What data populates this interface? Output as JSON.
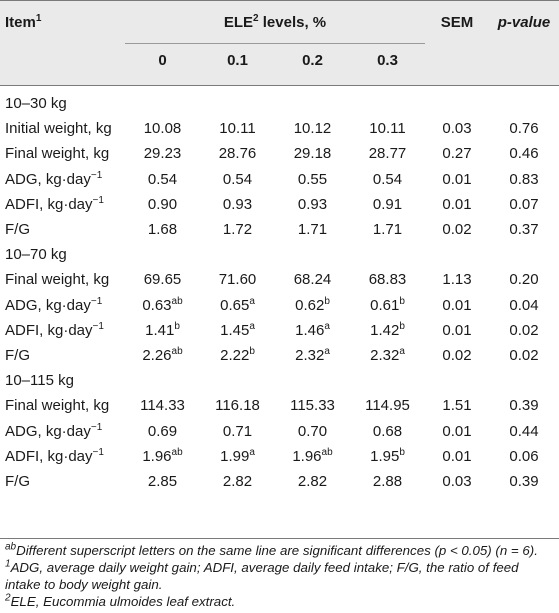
{
  "header": {
    "item": "Item",
    "item_sup": "1",
    "ele_pre": "ELE",
    "ele_sup": "2",
    "ele_post": " levels, %",
    "sem": "SEM",
    "pvalue": "p-value",
    "levels": [
      "0",
      "0.1",
      "0.2",
      "0.3"
    ]
  },
  "sections": [
    {
      "title": "10–30 kg",
      "rows": [
        {
          "label": "Initial weight, kg",
          "unit_sup": "",
          "values": [
            {
              "v": "10.08",
              "s": ""
            },
            {
              "v": "10.11",
              "s": ""
            },
            {
              "v": "10.12",
              "s": ""
            },
            {
              "v": "10.11",
              "s": ""
            }
          ],
          "sem": "0.03",
          "p": "0.76"
        },
        {
          "label": "Final weight, kg",
          "unit_sup": "",
          "values": [
            {
              "v": "29.23",
              "s": ""
            },
            {
              "v": "28.76",
              "s": ""
            },
            {
              "v": "29.18",
              "s": ""
            },
            {
              "v": "28.77",
              "s": ""
            }
          ],
          "sem": "0.27",
          "p": "0.46"
        },
        {
          "label": "ADG, kg·day",
          "unit_sup": "−1",
          "values": [
            {
              "v": "0.54",
              "s": ""
            },
            {
              "v": "0.54",
              "s": ""
            },
            {
              "v": "0.55",
              "s": ""
            },
            {
              "v": "0.54",
              "s": ""
            }
          ],
          "sem": "0.01",
          "p": "0.83"
        },
        {
          "label": "ADFI, kg·day",
          "unit_sup": "−1",
          "values": [
            {
              "v": "0.90",
              "s": ""
            },
            {
              "v": "0.93",
              "s": ""
            },
            {
              "v": "0.93",
              "s": ""
            },
            {
              "v": "0.91",
              "s": ""
            }
          ],
          "sem": "0.01",
          "p": "0.07"
        },
        {
          "label": "F/G",
          "unit_sup": "",
          "values": [
            {
              "v": "1.68",
              "s": ""
            },
            {
              "v": "1.72",
              "s": ""
            },
            {
              "v": "1.71",
              "s": ""
            },
            {
              "v": "1.71",
              "s": ""
            }
          ],
          "sem": "0.02",
          "p": "0.37"
        }
      ]
    },
    {
      "title": "10–70 kg",
      "rows": [
        {
          "label": "Final weight, kg",
          "unit_sup": "",
          "values": [
            {
              "v": "69.65",
              "s": ""
            },
            {
              "v": "71.60",
              "s": ""
            },
            {
              "v": "68.24",
              "s": ""
            },
            {
              "v": "68.83",
              "s": ""
            }
          ],
          "sem": "1.13",
          "p": "0.20"
        },
        {
          "label": "ADG, kg·day",
          "unit_sup": "−1",
          "values": [
            {
              "v": "0.63",
              "s": "ab"
            },
            {
              "v": "0.65",
              "s": "a"
            },
            {
              "v": "0.62",
              "s": "b"
            },
            {
              "v": "0.61",
              "s": "b"
            }
          ],
          "sem": "0.01",
          "p": "0.04"
        },
        {
          "label": "ADFI, kg·day",
          "unit_sup": "−1",
          "values": [
            {
              "v": "1.41",
              "s": "b"
            },
            {
              "v": "1.45",
              "s": "a"
            },
            {
              "v": "1.46",
              "s": "a"
            },
            {
              "v": "1.42",
              "s": "b"
            }
          ],
          "sem": "0.01",
          "p": "0.02"
        },
        {
          "label": "F/G",
          "unit_sup": "",
          "values": [
            {
              "v": "2.26",
              "s": "ab"
            },
            {
              "v": "2.22",
              "s": "b"
            },
            {
              "v": "2.32",
              "s": "a"
            },
            {
              "v": "2.32",
              "s": "a"
            }
          ],
          "sem": "0.02",
          "p": "0.02"
        }
      ]
    },
    {
      "title": "10–115 kg",
      "rows": [
        {
          "label": "Final weight, kg",
          "unit_sup": "",
          "values": [
            {
              "v": "114.33",
              "s": ""
            },
            {
              "v": "116.18",
              "s": ""
            },
            {
              "v": "115.33",
              "s": ""
            },
            {
              "v": "114.95",
              "s": ""
            }
          ],
          "sem": "1.51",
          "p": "0.39"
        },
        {
          "label": "ADG, kg·day",
          "unit_sup": "−1",
          "values": [
            {
              "v": "0.69",
              "s": ""
            },
            {
              "v": "0.71",
              "s": ""
            },
            {
              "v": "0.70",
              "s": ""
            },
            {
              "v": "0.68",
              "s": ""
            }
          ],
          "sem": "0.01",
          "p": "0.44"
        },
        {
          "label": "ADFI, kg·day",
          "unit_sup": "−1",
          "values": [
            {
              "v": "1.96",
              "s": "ab"
            },
            {
              "v": "1.99",
              "s": "a"
            },
            {
              "v": "1.96",
              "s": "ab"
            },
            {
              "v": "1.95",
              "s": "b"
            }
          ],
          "sem": "0.01",
          "p": "0.06"
        },
        {
          "label": "F/G",
          "unit_sup": "",
          "values": [
            {
              "v": "2.85",
              "s": ""
            },
            {
              "v": "2.82",
              "s": ""
            },
            {
              "v": "2.82",
              "s": ""
            },
            {
              "v": "2.88",
              "s": ""
            }
          ],
          "sem": "0.03",
          "p": "0.39"
        }
      ]
    }
  ],
  "footnotes": [
    {
      "sup": "ab",
      "text": "Different superscript letters on the same line are significant differences (p < 0.05) (n = 6)."
    },
    {
      "sup": "1",
      "text": "ADG, average daily weight gain; ADFI, average daily feed intake; F/G, the ratio of feed intake to body weight gain."
    },
    {
      "sup": "2",
      "text": "ELE, Eucommia ulmoides leaf extract."
    }
  ]
}
